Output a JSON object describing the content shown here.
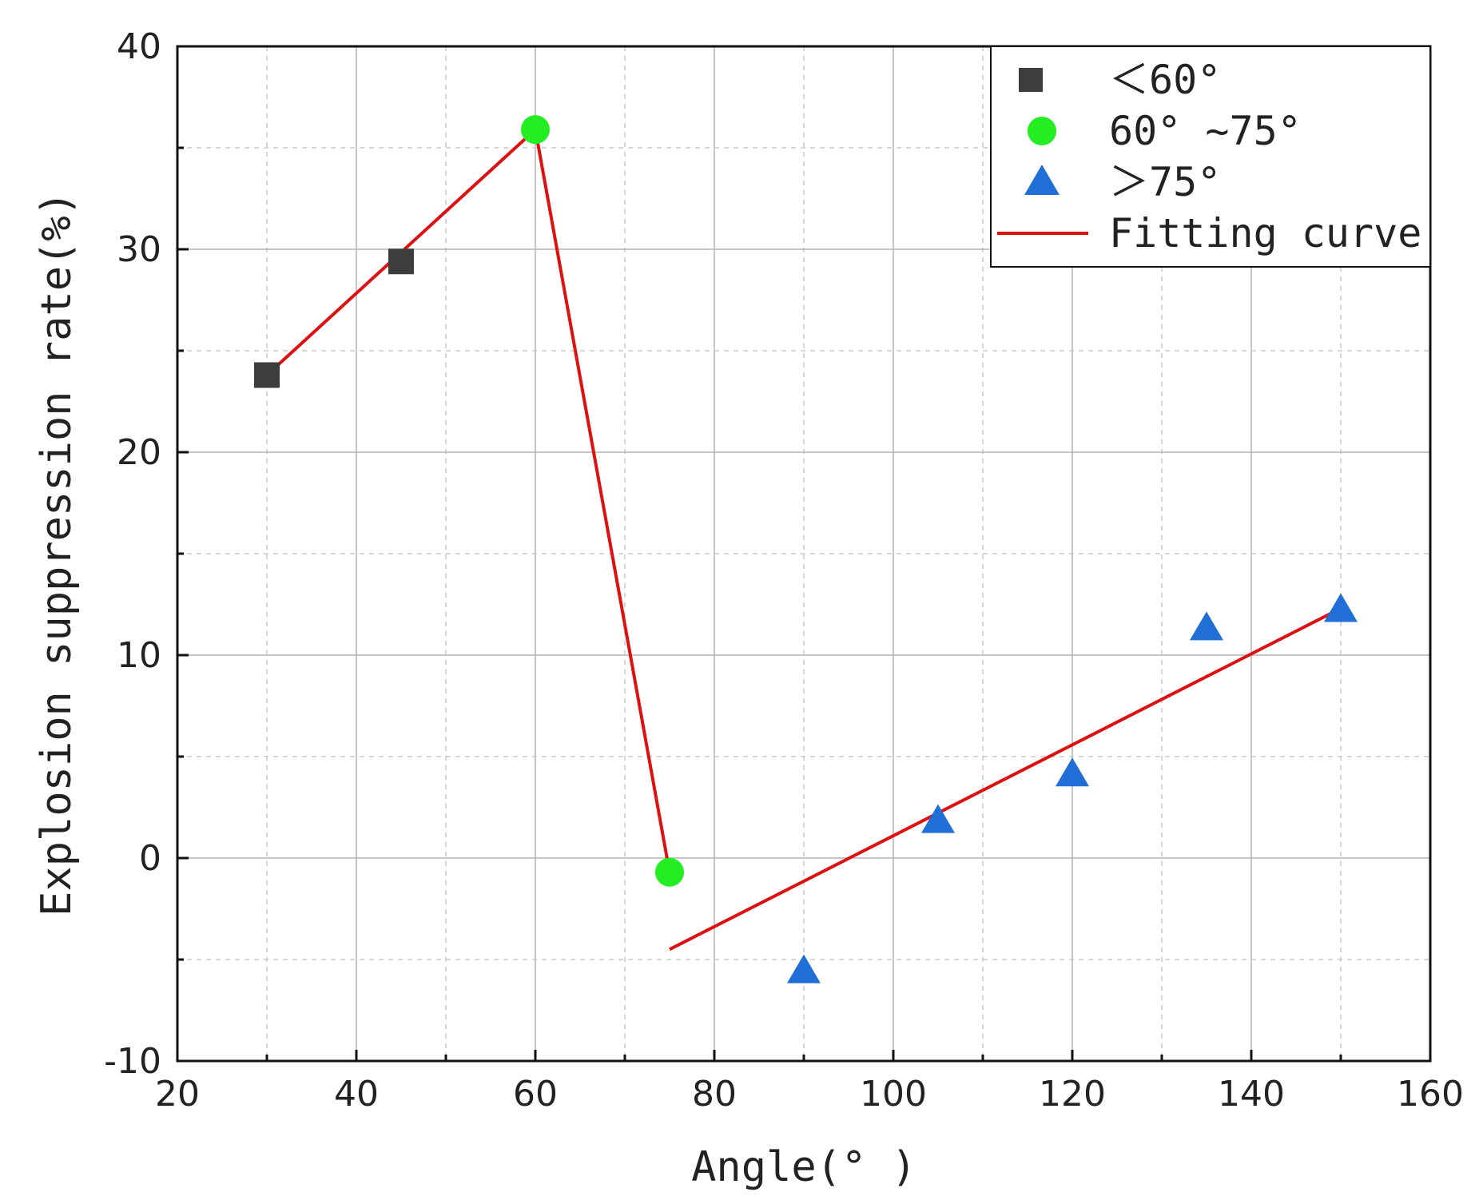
{
  "chart_data": {
    "type": "scatter",
    "title": "",
    "xlabel": "Angle(° )",
    "ylabel": "Explosion suppression rate(%)",
    "xlim": [
      20,
      160
    ],
    "ylim": [
      -10,
      40
    ],
    "x_ticks": [
      20,
      40,
      60,
      80,
      100,
      120,
      140,
      160
    ],
    "y_ticks": [
      -10,
      0,
      10,
      20,
      30,
      40
    ],
    "x_tick_labels": [
      "20",
      "40",
      "60",
      "80",
      "100",
      "120",
      "140",
      "160"
    ],
    "y_tick_labels": [
      "-10",
      "0",
      "10",
      "20",
      "30",
      "40"
    ],
    "grid": true,
    "legend_position": "top-right",
    "series": [
      {
        "name": "＜60°",
        "marker": "square",
        "color": "#3d3d3d",
        "x": [
          30,
          45
        ],
        "y": [
          23.8,
          29.4
        ]
      },
      {
        "name": "60° ~75°",
        "marker": "circle",
        "color": "#22ee22",
        "x": [
          60,
          75
        ],
        "y": [
          35.9,
          -0.7
        ]
      },
      {
        "name": "＞75°",
        "marker": "triangle",
        "color": "#1f6fd6",
        "x": [
          90,
          105,
          120,
          135,
          150
        ],
        "y": [
          -5.6,
          1.8,
          4.1,
          11.3,
          12.2
        ]
      },
      {
        "name": "Fitting curve",
        "marker": "line",
        "color": "#dd1111",
        "segments": [
          {
            "x": [
              30,
              60
            ],
            "y": [
              23.8,
              35.9
            ]
          },
          {
            "x": [
              60,
              75
            ],
            "y": [
              35.9,
              -0.7
            ]
          },
          {
            "x": [
              75,
              150
            ],
            "y": [
              -4.5,
              12.3
            ]
          }
        ]
      }
    ]
  }
}
